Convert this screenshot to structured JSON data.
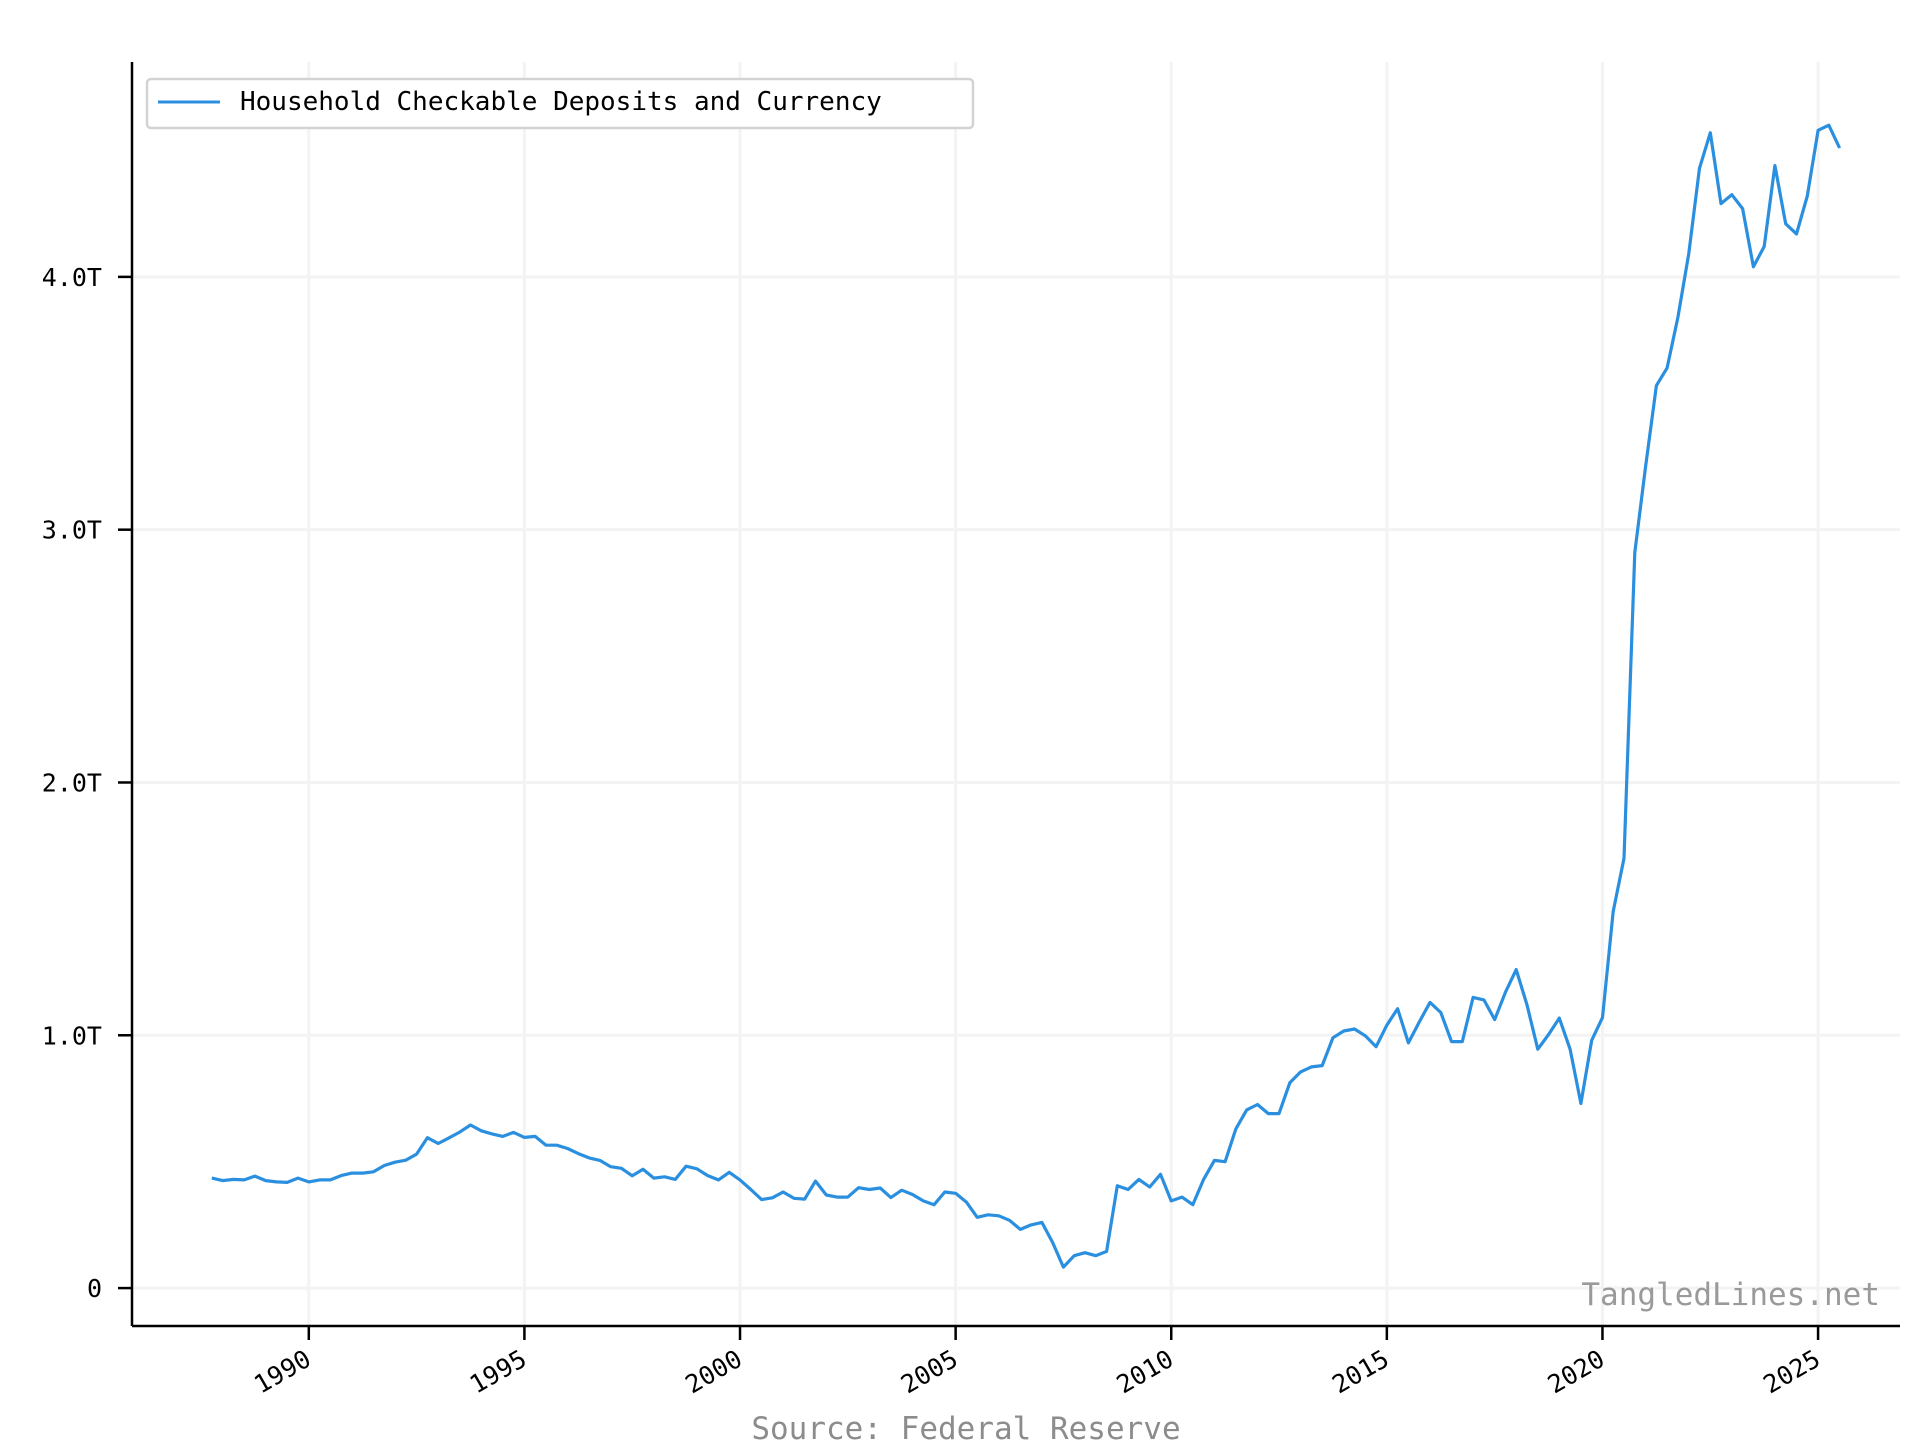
{
  "chart_data": {
    "type": "line",
    "title": "",
    "xlabel": "",
    "ylabel": "",
    "xlim": [
      1985.9,
      2026.9
    ],
    "ylim": [
      -0.15,
      4.85
    ],
    "grid": true,
    "legend_position": "top-left",
    "x_ticks": [
      1990,
      1995,
      2000,
      2005,
      2010,
      2015,
      2020,
      2025
    ],
    "x_tick_labels": [
      "1990",
      "1995",
      "2000",
      "2005",
      "2010",
      "2015",
      "2020",
      "2025"
    ],
    "y_ticks": [
      0,
      1,
      2,
      3,
      4
    ],
    "y_tick_labels": [
      "0",
      "1.0T",
      "2.0T",
      "3.0T",
      "4.0T"
    ],
    "units": "trillions of dollars",
    "series": [
      {
        "name": "Household Checkable Deposits and Currency",
        "color": "#2b8fe0",
        "x": [
          1987.75,
          1988.0,
          1988.25,
          1988.5,
          1988.75,
          1989.0,
          1989.25,
          1989.5,
          1989.75,
          1990.0,
          1990.25,
          1990.5,
          1990.75,
          1991.0,
          1991.25,
          1991.5,
          1991.75,
          1992.0,
          1992.25,
          1992.5,
          1992.75,
          1993.0,
          1993.25,
          1993.5,
          1993.75,
          1994.0,
          1994.25,
          1994.5,
          1994.75,
          1995.0,
          1995.25,
          1995.5,
          1995.75,
          1996.0,
          1996.25,
          1996.5,
          1996.75,
          1997.0,
          1997.25,
          1997.5,
          1997.75,
          1998.0,
          1998.25,
          1998.5,
          1998.75,
          1999.0,
          1999.25,
          1999.5,
          1999.75,
          2000.0,
          2000.25,
          2000.5,
          2000.75,
          2001.0,
          2001.25,
          2001.5,
          2001.75,
          2002.0,
          2002.25,
          2002.5,
          2002.75,
          2003.0,
          2003.25,
          2003.5,
          2003.75,
          2004.0,
          2004.25,
          2004.5,
          2004.75,
          2005.0,
          2005.25,
          2005.5,
          2005.75,
          2006.0,
          2006.25,
          2006.5,
          2006.75,
          2007.0,
          2007.25,
          2007.5,
          2007.75,
          2008.0,
          2008.25,
          2008.5,
          2008.75,
          2009.0,
          2009.25,
          2009.5,
          2009.75,
          2010.0,
          2010.25,
          2010.5,
          2010.75,
          2011.0,
          2011.25,
          2011.5,
          2011.75,
          2012.0,
          2012.25,
          2012.5,
          2012.75,
          2013.0,
          2013.25,
          2013.5,
          2013.75,
          2014.0,
          2014.25,
          2014.5,
          2014.75,
          2015.0,
          2015.25,
          2015.5,
          2015.75,
          2016.0,
          2016.25,
          2016.5,
          2016.75,
          2017.0,
          2017.25,
          2017.5,
          2017.75,
          2018.0,
          2018.25,
          2018.5,
          2018.75,
          2019.0,
          2019.25,
          2019.5,
          2019.75,
          2020.0,
          2020.25,
          2020.5,
          2020.75,
          2021.0,
          2021.25,
          2021.5,
          2021.75,
          2022.0,
          2022.25,
          2022.5,
          2022.75,
          2023.0,
          2023.25,
          2023.5,
          2023.75,
          2024.0,
          2024.25,
          2024.5,
          2024.75,
          2025.0,
          2025.25,
          2025.5
        ],
        "values": [
          0.435,
          0.425,
          0.43,
          0.428,
          0.443,
          0.425,
          0.42,
          0.418,
          0.435,
          0.42,
          0.428,
          0.428,
          0.445,
          0.455,
          0.455,
          0.46,
          0.485,
          0.498,
          0.506,
          0.53,
          0.595,
          0.572,
          0.594,
          0.617,
          0.645,
          0.622,
          0.61,
          0.6,
          0.616,
          0.596,
          0.6,
          0.565,
          0.565,
          0.552,
          0.532,
          0.515,
          0.505,
          0.48,
          0.474,
          0.444,
          0.47,
          0.435,
          0.44,
          0.43,
          0.482,
          0.472,
          0.445,
          0.428,
          0.458,
          0.428,
          0.39,
          0.35,
          0.357,
          0.38,
          0.355,
          0.352,
          0.423,
          0.368,
          0.36,
          0.36,
          0.397,
          0.39,
          0.396,
          0.358,
          0.387,
          0.37,
          0.345,
          0.33,
          0.38,
          0.375,
          0.34,
          0.28,
          0.29,
          0.286,
          0.268,
          0.232,
          0.25,
          0.26,
          0.18,
          0.083,
          0.128,
          0.14,
          0.128,
          0.145,
          0.405,
          0.39,
          0.43,
          0.4,
          0.45,
          0.345,
          0.36,
          0.33,
          0.43,
          0.505,
          0.5,
          0.63,
          0.705,
          0.726,
          0.69,
          0.69,
          0.812,
          0.855,
          0.875,
          0.88,
          0.99,
          1.017,
          1.025,
          0.998,
          0.955,
          1.04,
          1.105,
          0.97,
          1.052,
          1.13,
          1.09,
          0.975,
          0.975,
          1.15,
          1.14,
          1.062,
          1.17,
          1.26,
          1.12,
          0.945,
          1.003,
          1.068,
          0.945,
          0.73,
          0.98,
          1.07,
          1.49,
          1.7,
          2.91,
          3.25,
          3.57,
          3.64,
          3.84,
          4.09,
          4.43,
          4.57,
          4.29,
          4.325,
          4.27,
          4.04,
          4.12,
          4.44,
          4.21,
          4.17,
          4.32,
          4.58,
          4.6,
          4.51
        ]
      }
    ]
  },
  "watermark": "TangledLines.net",
  "source_note": "Source: Federal Reserve"
}
